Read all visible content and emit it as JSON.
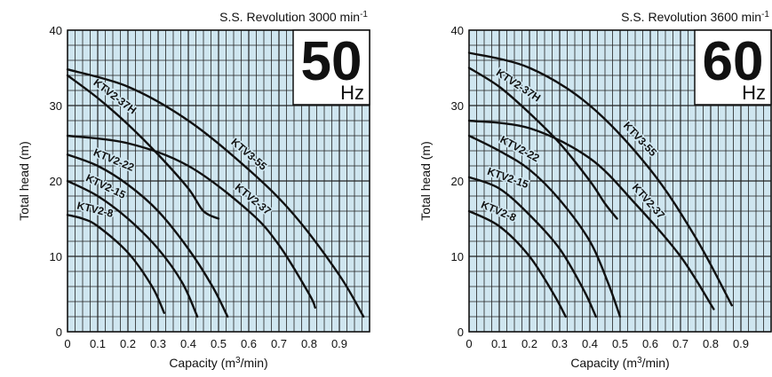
{
  "chart_data": [
    {
      "type": "line",
      "title": "S.S. Revolution 3000 min-1",
      "title_text": "S.S. Revolution 3000 min",
      "title_sup": "-1",
      "badge": {
        "value": "50",
        "unit": "Hz"
      },
      "xlabel": "Capacity (m",
      "xlabel_sup": "3",
      "xlabel_tail": "/min)",
      "ylabel": "Total head (m)",
      "xlim": [
        0,
        1.0
      ],
      "ylim": [
        0,
        40
      ],
      "xticks": [
        "0",
        "0.1",
        "0.2",
        "0.3",
        "0.4",
        "0.5",
        "0.6",
        "0.7",
        "0.8",
        "0.9"
      ],
      "yticks": [
        "0",
        "10",
        "20",
        "30",
        "40"
      ],
      "grid": true,
      "series": [
        {
          "name": "KTV2-37H",
          "x": [
            0,
            0.1,
            0.2,
            0.3,
            0.4,
            0.45,
            0.5
          ],
          "y": [
            34,
            31,
            27.5,
            23.5,
            19,
            16,
            15
          ]
        },
        {
          "name": "KTV3-55",
          "x": [
            0,
            0.2,
            0.4,
            0.6,
            0.75,
            0.9,
            0.98
          ],
          "y": [
            34.8,
            32.5,
            28,
            21.5,
            15.5,
            7.5,
            2
          ]
        },
        {
          "name": "KTV2-37",
          "x": [
            0,
            0.2,
            0.4,
            0.6,
            0.7,
            0.8,
            0.82
          ],
          "y": [
            26,
            25,
            22,
            16,
            11.5,
            5,
            3.2
          ]
        },
        {
          "name": "KTV2-22",
          "x": [
            0,
            0.1,
            0.2,
            0.3,
            0.4,
            0.48,
            0.53
          ],
          "y": [
            23.5,
            22,
            19.5,
            16,
            11,
            6,
            2
          ]
        },
        {
          "name": "KTV2-15",
          "x": [
            0,
            0.1,
            0.2,
            0.3,
            0.38,
            0.43
          ],
          "y": [
            20,
            18,
            15,
            11,
            6.5,
            2
          ]
        },
        {
          "name": "KTV2-8",
          "x": [
            0,
            0.05,
            0.1,
            0.2,
            0.28,
            0.32
          ],
          "y": [
            15.5,
            15,
            14,
            10.5,
            6,
            2.5
          ]
        }
      ]
    },
    {
      "type": "line",
      "title": "S.S. Revolution 3600 min-1",
      "title_text": "S.S. Revolution 3600 min",
      "title_sup": "-1",
      "badge": {
        "value": "60",
        "unit": "Hz"
      },
      "xlabel": "Capacity (m",
      "xlabel_sup": "3",
      "xlabel_tail": "/min)",
      "ylabel": "Total head (m)",
      "xlim": [
        0,
        1.0
      ],
      "ylim": [
        0,
        40
      ],
      "xticks": [
        "0",
        "0.1",
        "0.2",
        "0.3",
        "0.4",
        "0.5",
        "0.6",
        "0.7",
        "0.8",
        "0.9"
      ],
      "yticks": [
        "0",
        "10",
        "20",
        "30",
        "40"
      ],
      "grid": true,
      "series": [
        {
          "name": "KTV2-37H",
          "x": [
            0,
            0.1,
            0.2,
            0.3,
            0.4,
            0.45,
            0.49
          ],
          "y": [
            35,
            32.5,
            29,
            25,
            20,
            17,
            15
          ]
        },
        {
          "name": "KTV3-55",
          "x": [
            0,
            0.2,
            0.4,
            0.6,
            0.75,
            0.87
          ],
          "y": [
            37,
            35,
            30,
            21.5,
            12.5,
            3.5
          ]
        },
        {
          "name": "KTV2-37",
          "x": [
            0,
            0.2,
            0.4,
            0.55,
            0.7,
            0.81
          ],
          "y": [
            28,
            27,
            23,
            17,
            10,
            3
          ]
        },
        {
          "name": "KTV2-22",
          "x": [
            0,
            0.1,
            0.2,
            0.3,
            0.4,
            0.46,
            0.5
          ],
          "y": [
            26,
            24,
            21.5,
            17.5,
            12,
            6.5,
            2
          ]
        },
        {
          "name": "KTV2-15",
          "x": [
            0,
            0.1,
            0.2,
            0.3,
            0.38,
            0.42
          ],
          "y": [
            20.5,
            19,
            15.5,
            11,
            5.5,
            2
          ]
        },
        {
          "name": "KTV2-8",
          "x": [
            0,
            0.1,
            0.2,
            0.28,
            0.32
          ],
          "y": [
            16,
            14,
            10,
            5,
            2
          ]
        }
      ]
    }
  ]
}
